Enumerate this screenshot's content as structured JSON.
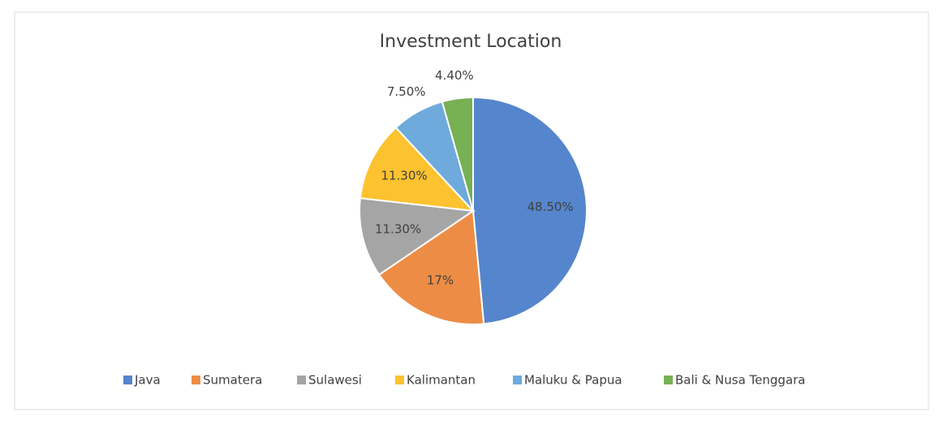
{
  "chart_data": {
    "type": "pie",
    "title": "Investment Location",
    "categories": [
      "Java",
      "Sumatera",
      "Sulawesi",
      "Kalimantan",
      "Maluku & Papua",
      "Bali & Nusa Tenggara"
    ],
    "values": [
      48.5,
      17,
      11.3,
      11.3,
      7.5,
      4.4
    ],
    "value_labels": [
      "48.50%",
      "17%",
      "11.30%",
      "11.30%",
      "7.50%",
      "4.40%"
    ],
    "colors": [
      "#5585cc",
      "#ed8d45",
      "#a5a5a5",
      "#fcc22f",
      "#6eaadb",
      "#78b054"
    ],
    "legend": "bottom"
  }
}
